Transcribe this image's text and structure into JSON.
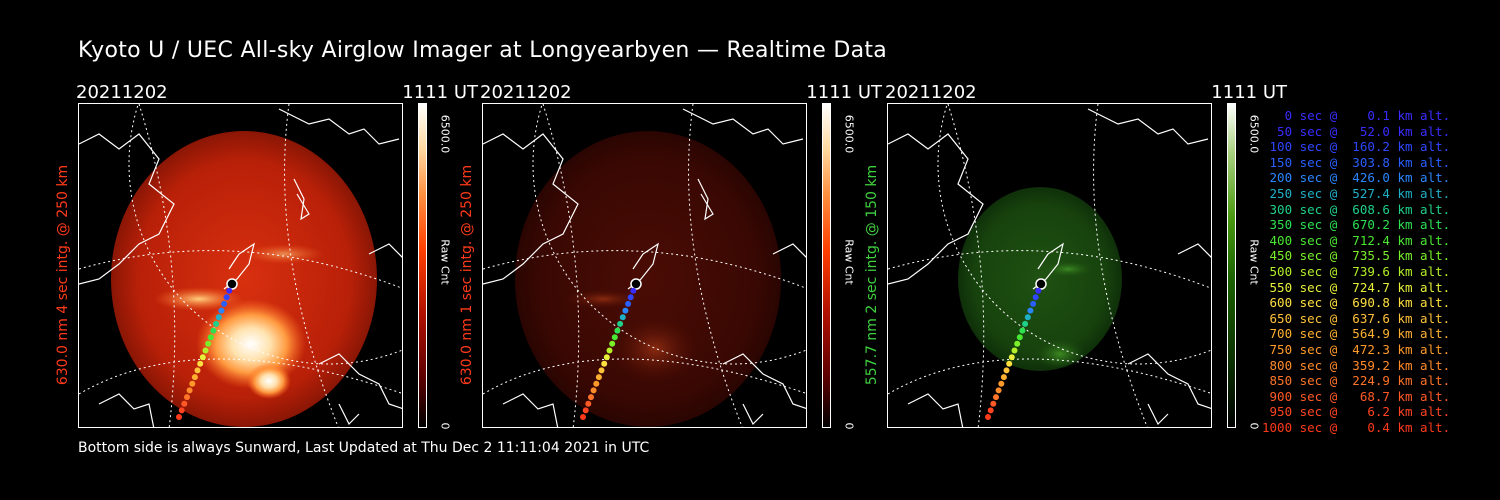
{
  "title": "Kyoto U / UEC All-sky Airglow Imager at Longyearbyen — Realtime Data",
  "footer": "Bottom side is always Sunward, Last Updated at Thu Dec  2 11:11:04 2021 in UTC",
  "panels": [
    {
      "date": "20211202",
      "time": "1111 UT",
      "ylabel": "630.0 nm 4 sec intg. @ 250 km",
      "label_color": "#ff3a1a",
      "colorbar_max": "6500.0",
      "colorbar_min": "0",
      "colorbar_unit": "Raw Cnt",
      "palette": "red-hot",
      "intensity": "bright"
    },
    {
      "date": "20211202",
      "time": "1111 UT",
      "ylabel": "630.0 nm 1 sec intg. @ 250 km",
      "label_color": "#ff3a1a",
      "colorbar_max": "6500.0",
      "colorbar_min": "0",
      "colorbar_unit": "Raw Cnt",
      "palette": "red-hot",
      "intensity": "dim"
    },
    {
      "date": "20211202",
      "time": "1111 UT",
      "ylabel": "557.7 nm 2 sec intg. @ 150 km",
      "label_color": "#3fd23f",
      "colorbar_max": "6500.0",
      "colorbar_min": "0",
      "colorbar_unit": "Raw Cnt",
      "palette": "green",
      "intensity": "dim"
    }
  ],
  "legend": [
    {
      "text": "   0 sec @    0.1 km alt.",
      "color": "#3a2cff"
    },
    {
      "text": "  50 sec @   52.0 km alt.",
      "color": "#3a2cff"
    },
    {
      "text": " 100 sec @  160.2 km alt.",
      "color": "#2f46ff"
    },
    {
      "text": " 150 sec @  303.8 km alt.",
      "color": "#2a5fff"
    },
    {
      "text": " 200 sec @  426.0 km alt.",
      "color": "#2a86ff"
    },
    {
      "text": " 250 sec @  527.4 km alt.",
      "color": "#1fb0c8"
    },
    {
      "text": " 300 sec @  608.6 km alt.",
      "color": "#1fd08a"
    },
    {
      "text": " 350 sec @  670.2 km alt.",
      "color": "#2ee050"
    },
    {
      "text": " 400 sec @  712.4 km alt.",
      "color": "#4ae832"
    },
    {
      "text": " 450 sec @  735.5 km alt.",
      "color": "#7af02a"
    },
    {
      "text": " 500 sec @  739.6 km alt.",
      "color": "#b4f02a"
    },
    {
      "text": " 550 sec @  724.7 km alt.",
      "color": "#e6f03a"
    },
    {
      "text": " 600 sec @  690.8 km alt.",
      "color": "#ffe040"
    },
    {
      "text": " 650 sec @  637.6 km alt.",
      "color": "#ffc23a"
    },
    {
      "text": " 700 sec @  564.9 km alt.",
      "color": "#ffb030"
    },
    {
      "text": " 750 sec @  472.3 km alt.",
      "color": "#ff9a2a"
    },
    {
      "text": " 800 sec @  359.2 km alt.",
      "color": "#ff8a2a"
    },
    {
      "text": " 850 sec @  224.9 km alt.",
      "color": "#ff7428"
    },
    {
      "text": " 900 sec @   68.7 km alt.",
      "color": "#ff5a26"
    },
    {
      "text": " 950 sec @    6.2 km alt.",
      "color": "#ff4422"
    },
    {
      "text": "1000 sec @    0.4 km alt.",
      "color": "#ff3a1a"
    }
  ]
}
